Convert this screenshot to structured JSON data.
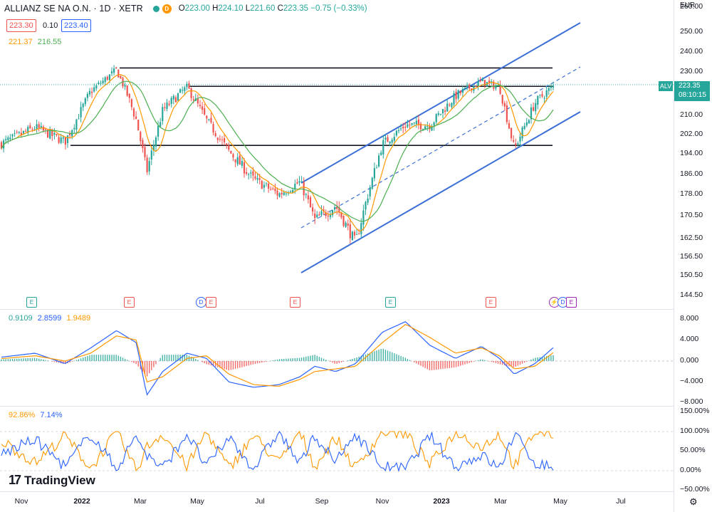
{
  "header": {
    "symbol": "ALLIANZ SE NA O.N. · 1D · XETR",
    "interval_badge": "D",
    "open_label": "O",
    "open": "223.00",
    "high_label": "H",
    "high": "224.10",
    "low_label": "L",
    "low": "221.60",
    "close_label": "C",
    "close": "223.35",
    "change": "−0.75 (−0.33%)",
    "bid": "223.30",
    "spread": "0.10",
    "ask": "223.40",
    "ma1": "221.37",
    "ma2": "216.55"
  },
  "currency": "EUR",
  "last_price": {
    "ticker": "ALV",
    "price": "223.35",
    "countdown": "08:10:15"
  },
  "price_axis": [
    "260.00",
    "250.00",
    "240.00",
    "230.00",
    "220.00",
    "210.00",
    "202.00",
    "194.00",
    "186.00",
    "178.00",
    "170.50",
    "162.50",
    "156.50",
    "150.50",
    "144.50"
  ],
  "macd_panel": {
    "values": [
      "0.9109",
      "2.8599",
      "1.9489"
    ],
    "axis": [
      "8.000",
      "4.000",
      "0.000",
      "−4.000",
      "−8.000"
    ]
  },
  "stoch_panel": {
    "values": [
      "92.86%",
      "7.14%"
    ],
    "axis": [
      "150.00%",
      "100.00%",
      "50.00%",
      "0.00%",
      "−50.00%"
    ]
  },
  "time_axis": [
    {
      "label": "Nov",
      "bold": false
    },
    {
      "label": "2022",
      "bold": true
    },
    {
      "label": "Mar",
      "bold": false
    },
    {
      "label": "May",
      "bold": false
    },
    {
      "label": "Jul",
      "bold": false
    },
    {
      "label": "Sep",
      "bold": false
    },
    {
      "label": "Nov",
      "bold": false
    },
    {
      "label": "2023",
      "bold": true
    },
    {
      "label": "Mar",
      "bold": false
    },
    {
      "label": "May",
      "bold": false
    },
    {
      "label": "Jul",
      "bold": false
    }
  ],
  "events": [
    {
      "label": "E",
      "color": "#26a69a"
    },
    {
      "label": "E",
      "color": "#ef5350"
    },
    {
      "label": "D",
      "color": "#2962ff"
    },
    {
      "label": "E",
      "color": "#ef5350"
    },
    {
      "label": "E",
      "color": "#ef5350"
    },
    {
      "label": "E",
      "color": "#26a69a"
    },
    {
      "label": "E",
      "color": "#ef5350"
    },
    {
      "label": "⚡",
      "color": "#9c27b0"
    },
    {
      "label": "D",
      "color": "#2962ff"
    },
    {
      "label": "E",
      "color": "#9c27b0"
    }
  ],
  "brand": "TradingView",
  "colors": {
    "up": "#26a69a",
    "down": "#ef5350",
    "ma_fast": "#ff9800",
    "ma_slow": "#4caf50",
    "channel": "#3c6fd6",
    "line": "#131722",
    "macd": "#2962ff",
    "signal": "#ff9800",
    "k": "#ff9800",
    "d": "#2962ff"
  },
  "chart_data": [
    {
      "type": "line",
      "title": "ALLIANZ SE NA O.N. · 1D · XETR",
      "xlabel": "",
      "ylabel": "",
      "ylim": [
        144.5,
        260
      ],
      "series": [
        {
          "name": "",
          "x": [
            "2021-10-01",
            "2021-11-15",
            "2021-12-15",
            "2022-01-10",
            "2022-02-05",
            "2022-02-25",
            "2022-03-08",
            "2022-03-25",
            "2022-04-20",
            "2022-05-10",
            "2022-06-01",
            "2022-06-25",
            "2022-07-20",
            "2022-08-10",
            "2022-08-25",
            "2022-09-15",
            "2022-10-05",
            "2022-11-01",
            "2022-11-25",
            "2022-12-20",
            "2023-01-15",
            "2023-02-10",
            "2023-02-28",
            "2023-03-15",
            "2023-04-05",
            "2023-04-26"
          ],
          "values": [
            196,
            205,
            199,
            220,
            231,
            208,
            187,
            212,
            222,
            208,
            195,
            184,
            178,
            183,
            169,
            174,
            161,
            198,
            206,
            206,
            218,
            225,
            222,
            196,
            215,
            223.35
          ]
        }
      ],
      "annotations": []
    },
    {
      "type": "line",
      "xlabel": "",
      "ylabel": "",
      "ylim": [
        -8,
        8
      ],
      "series": [
        {
          "name": "",
          "values": [
            0.5,
            1.5,
            -0.5,
            2.5,
            5.8,
            3.5,
            -6.5,
            -2.0,
            1.5,
            0.5,
            -4.0,
            -5.0,
            -4.5,
            -3.0,
            -1.0,
            -2.0,
            -0.5,
            5.5,
            7.5,
            3.0,
            0.5,
            2.8,
            0.5,
            -2.5,
            -0.5,
            2.9
          ]
        },
        {
          "name": "",
          "values": [
            0.3,
            1.0,
            0.0,
            1.5,
            4.8,
            4.0,
            -4.0,
            -3.0,
            0.5,
            1.0,
            -2.5,
            -4.5,
            -4.8,
            -3.5,
            -2.0,
            -1.5,
            -1.0,
            3.5,
            7.0,
            4.5,
            1.5,
            2.5,
            1.0,
            -1.5,
            -1.0,
            1.9
          ]
        }
      ]
    },
    {
      "type": "line",
      "xlabel": "",
      "ylabel": "",
      "ylim": [
        -50,
        150
      ],
      "series": [
        {
          "name": "",
          "values": [
            95,
            20,
            90,
            5,
            100,
            0,
            60,
            95,
            10,
            100,
            5,
            90,
            20,
            100,
            10,
            85,
            5,
            100,
            95,
            15,
            100,
            60,
            95,
            10,
            100,
            92.86
          ]
        },
        {
          "name": "",
          "values": [
            30,
            80,
            10,
            95,
            5,
            90,
            40,
            5,
            95,
            10,
            85,
            5,
            100,
            15,
            90,
            20,
            95,
            10,
            5,
            90,
            10,
            40,
            5,
            95,
            20,
            7.14
          ]
        }
      ]
    }
  ]
}
